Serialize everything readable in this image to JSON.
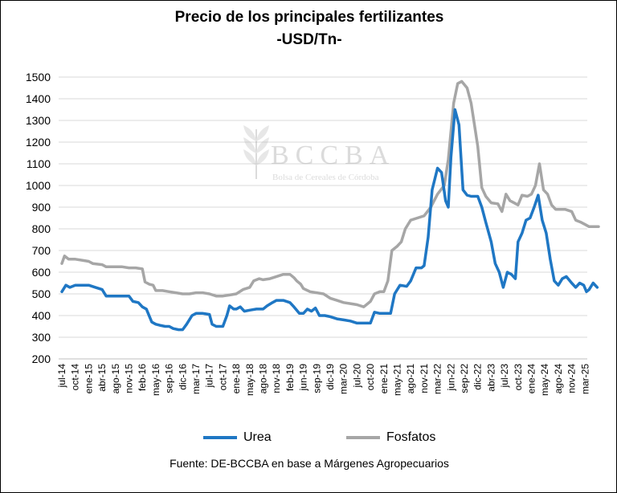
{
  "header": {
    "title": "Precio de los principales fertilizantes",
    "subtitle": "-USD/Tn-"
  },
  "watermark": {
    "logo_text": "BCCBA",
    "tagline": "Bolsa de Cereales de Córdoba"
  },
  "footer": {
    "source": "Fuente: DE-BCCBA en base a Márgenes Agropecuarios"
  },
  "chart_data": {
    "type": "line",
    "title": "Precio de los principales fertilizantes",
    "subtitle": "-USD/Tn-",
    "xlabel": "",
    "ylabel": "",
    "ylim": [
      200,
      1500
    ],
    "y_ticks": [
      200,
      300,
      400,
      500,
      600,
      700,
      800,
      900,
      1000,
      1100,
      1200,
      1300,
      1400,
      1500
    ],
    "grid": "horizontal",
    "legend_position": "bottom",
    "x_tick_labels": [
      "jul-14",
      "oct-14",
      "ene-15",
      "abr-15",
      "ago-15",
      "nov-15",
      "feb-16",
      "may-16",
      "sep-16",
      "dic-16",
      "mar-17",
      "jul-17",
      "oct-17",
      "ene-18",
      "may-18",
      "ago-18",
      "nov-18",
      "feb-19",
      "jun-19",
      "sep-19",
      "dic-19",
      "mar-20",
      "jul-20",
      "oct-20",
      "ene-21",
      "may-21",
      "ago-21",
      "nov-21",
      "mar-22",
      "jun-22",
      "sep-22",
      "dic-22",
      "abr-23",
      "jul-23",
      "oct-23",
      "ene-24",
      "may-24",
      "ago-24",
      "nov-24",
      "mar-25"
    ],
    "series": [
      {
        "name": "Urea",
        "color": "#1f77c4",
        "points": [
          [
            0,
            510
          ],
          [
            0.3,
            540
          ],
          [
            0.6,
            530
          ],
          [
            1,
            540
          ],
          [
            1.5,
            540
          ],
          [
            2,
            540
          ],
          [
            2.5,
            530
          ],
          [
            3,
            520
          ],
          [
            3.3,
            490
          ],
          [
            4,
            490
          ],
          [
            4.5,
            490
          ],
          [
            5,
            490
          ],
          [
            5.3,
            465
          ],
          [
            5.7,
            460
          ],
          [
            6,
            440
          ],
          [
            6.3,
            430
          ],
          [
            6.7,
            370
          ],
          [
            7,
            360
          ],
          [
            7.3,
            355
          ],
          [
            7.7,
            350
          ],
          [
            8,
            350
          ],
          [
            8.3,
            340
          ],
          [
            8.7,
            335
          ],
          [
            9,
            335
          ],
          [
            9.3,
            360
          ],
          [
            9.7,
            400
          ],
          [
            10,
            410
          ],
          [
            10.5,
            410
          ],
          [
            11,
            405
          ],
          [
            11.2,
            360
          ],
          [
            11.5,
            350
          ],
          [
            12,
            350
          ],
          [
            12.3,
            400
          ],
          [
            12.5,
            445
          ],
          [
            12.8,
            430
          ],
          [
            13,
            430
          ],
          [
            13.3,
            440
          ],
          [
            13.6,
            420
          ],
          [
            14,
            425
          ],
          [
            14.5,
            430
          ],
          [
            15,
            430
          ],
          [
            15.3,
            445
          ],
          [
            15.7,
            460
          ],
          [
            16,
            470
          ],
          [
            16.5,
            470
          ],
          [
            17,
            460
          ],
          [
            17.3,
            440
          ],
          [
            17.7,
            410
          ],
          [
            18,
            410
          ],
          [
            18.3,
            430
          ],
          [
            18.6,
            420
          ],
          [
            18.9,
            435
          ],
          [
            19.2,
            400
          ],
          [
            19.6,
            400
          ],
          [
            20,
            395
          ],
          [
            20.5,
            385
          ],
          [
            21,
            380
          ],
          [
            21.5,
            375
          ],
          [
            22,
            365
          ],
          [
            22.5,
            365
          ],
          [
            23,
            365
          ],
          [
            23.3,
            415
          ],
          [
            23.7,
            410
          ],
          [
            24,
            410
          ],
          [
            24.5,
            410
          ],
          [
            24.8,
            500
          ],
          [
            25.2,
            540
          ],
          [
            25.7,
            535
          ],
          [
            26,
            560
          ],
          [
            26.4,
            620
          ],
          [
            26.8,
            620
          ],
          [
            27,
            630
          ],
          [
            27.3,
            760
          ],
          [
            27.6,
            980
          ],
          [
            28,
            1080
          ],
          [
            28.3,
            1060
          ],
          [
            28.6,
            930
          ],
          [
            28.8,
            900
          ],
          [
            29,
            1130
          ],
          [
            29.3,
            1350
          ],
          [
            29.6,
            1280
          ],
          [
            29.9,
            980
          ],
          [
            30.2,
            955
          ],
          [
            30.5,
            950
          ],
          [
            30.8,
            950
          ],
          [
            31,
            950
          ],
          [
            31.3,
            900
          ],
          [
            31.6,
            830
          ],
          [
            32,
            740
          ],
          [
            32.3,
            640
          ],
          [
            32.6,
            600
          ],
          [
            32.9,
            530
          ],
          [
            33.2,
            600
          ],
          [
            33.5,
            590
          ],
          [
            33.8,
            570
          ],
          [
            34,
            740
          ],
          [
            34.3,
            780
          ],
          [
            34.6,
            840
          ],
          [
            34.9,
            850
          ],
          [
            35.2,
            900
          ],
          [
            35.5,
            955
          ],
          [
            35.8,
            840
          ],
          [
            36.1,
            780
          ],
          [
            36.4,
            660
          ],
          [
            36.7,
            560
          ],
          [
            37,
            540
          ],
          [
            37.3,
            570
          ],
          [
            37.6,
            580
          ],
          [
            38,
            550
          ],
          [
            38.3,
            530
          ],
          [
            38.6,
            550
          ],
          [
            38.9,
            540
          ],
          [
            39.1,
            510
          ],
          [
            39.3,
            520
          ],
          [
            39.6,
            550
          ],
          [
            39.9,
            530
          ]
        ]
      },
      {
        "name": "Fosfatos",
        "color": "#a6a6a6",
        "points": [
          [
            0,
            640
          ],
          [
            0.2,
            675
          ],
          [
            0.5,
            660
          ],
          [
            1,
            660
          ],
          [
            1.5,
            655
          ],
          [
            2,
            650
          ],
          [
            2.3,
            640
          ],
          [
            3,
            635
          ],
          [
            3.3,
            625
          ],
          [
            4,
            625
          ],
          [
            4.5,
            625
          ],
          [
            5,
            620
          ],
          [
            5.5,
            620
          ],
          [
            6,
            615
          ],
          [
            6.2,
            555
          ],
          [
            6.5,
            545
          ],
          [
            6.8,
            540
          ],
          [
            7,
            515
          ],
          [
            7.5,
            515
          ],
          [
            8,
            510
          ],
          [
            8.5,
            505
          ],
          [
            9,
            500
          ],
          [
            9.5,
            500
          ],
          [
            10,
            505
          ],
          [
            10.5,
            505
          ],
          [
            11,
            500
          ],
          [
            11.5,
            490
          ],
          [
            12,
            490
          ],
          [
            12.5,
            495
          ],
          [
            13,
            500
          ],
          [
            13.5,
            520
          ],
          [
            14,
            530
          ],
          [
            14.3,
            560
          ],
          [
            14.7,
            570
          ],
          [
            15,
            565
          ],
          [
            15.5,
            570
          ],
          [
            16,
            580
          ],
          [
            16.5,
            590
          ],
          [
            17,
            590
          ],
          [
            17.3,
            575
          ],
          [
            17.5,
            560
          ],
          [
            17.8,
            545
          ],
          [
            18,
            525
          ],
          [
            18.5,
            510
          ],
          [
            19,
            505
          ],
          [
            19.5,
            500
          ],
          [
            20,
            480
          ],
          [
            20.5,
            470
          ],
          [
            21,
            460
          ],
          [
            21.5,
            455
          ],
          [
            22,
            450
          ],
          [
            22.5,
            440
          ],
          [
            23,
            465
          ],
          [
            23.3,
            500
          ],
          [
            23.7,
            510
          ],
          [
            24,
            510
          ],
          [
            24.3,
            560
          ],
          [
            24.6,
            700
          ],
          [
            25,
            720
          ],
          [
            25.3,
            740
          ],
          [
            25.6,
            800
          ],
          [
            26,
            840
          ],
          [
            26.5,
            850
          ],
          [
            27,
            860
          ],
          [
            27.5,
            900
          ],
          [
            28,
            960
          ],
          [
            28.5,
            1000
          ],
          [
            28.8,
            1120
          ],
          [
            29.2,
            1380
          ],
          [
            29.5,
            1470
          ],
          [
            29.8,
            1480
          ],
          [
            30.2,
            1450
          ],
          [
            30.5,
            1380
          ],
          [
            30.8,
            1260
          ],
          [
            31,
            1180
          ],
          [
            31.3,
            990
          ],
          [
            31.6,
            950
          ],
          [
            32,
            920
          ],
          [
            32.5,
            915
          ],
          [
            32.8,
            880
          ],
          [
            33.1,
            960
          ],
          [
            33.4,
            930
          ],
          [
            33.7,
            920
          ],
          [
            34,
            910
          ],
          [
            34.3,
            955
          ],
          [
            34.7,
            950
          ],
          [
            35,
            960
          ],
          [
            35.3,
            1000
          ],
          [
            35.6,
            1100
          ],
          [
            35.9,
            980
          ],
          [
            36.2,
            960
          ],
          [
            36.5,
            910
          ],
          [
            36.8,
            890
          ],
          [
            37,
            890
          ],
          [
            37.5,
            890
          ],
          [
            38,
            880
          ],
          [
            38.3,
            840
          ],
          [
            38.7,
            830
          ],
          [
            39,
            820
          ],
          [
            39.3,
            810
          ],
          [
            39.7,
            810
          ],
          [
            40,
            810
          ]
        ]
      }
    ]
  }
}
